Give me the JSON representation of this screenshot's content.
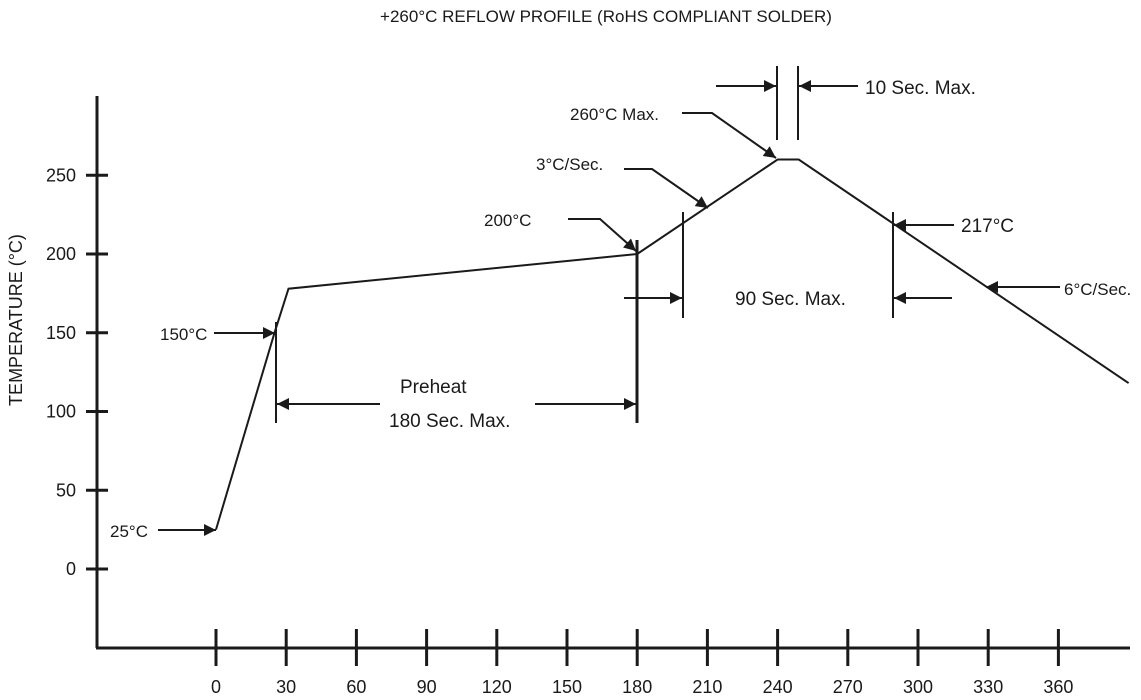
{
  "chart_data": {
    "type": "line",
    "title": "+260°C REFLOW PROFILE (RoHS COMPLIANT SOLDER)",
    "ylabel": "TEMPERATURE (°C)",
    "xlabel": "",
    "xlim": [
      -30,
      390
    ],
    "ylim": [
      -50,
      300
    ],
    "x_ticks": [
      0,
      30,
      60,
      90,
      120,
      150,
      180,
      210,
      240,
      270,
      300,
      330,
      360
    ],
    "y_ticks": [
      0,
      50,
      100,
      150,
      200,
      250
    ],
    "grid": false,
    "series": [
      {
        "x": [
          0,
          25,
          31,
          180,
          240,
          249,
          390
        ],
        "y": [
          25,
          150,
          178,
          200,
          260,
          260,
          118
        ]
      }
    ],
    "annotations": {
      "t25": "25°C",
      "t150": "150°C",
      "t200": "200°C",
      "rate3": "3°C/Sec.",
      "t260": "260°C Max.",
      "sec10": "10 Sec. Max.",
      "t217": "217°C",
      "sec90": "90 Sec. Max.",
      "rate6": "6°C/Sec.",
      "preheat1": "Preheat",
      "preheat2": "180 Sec. Max."
    }
  }
}
